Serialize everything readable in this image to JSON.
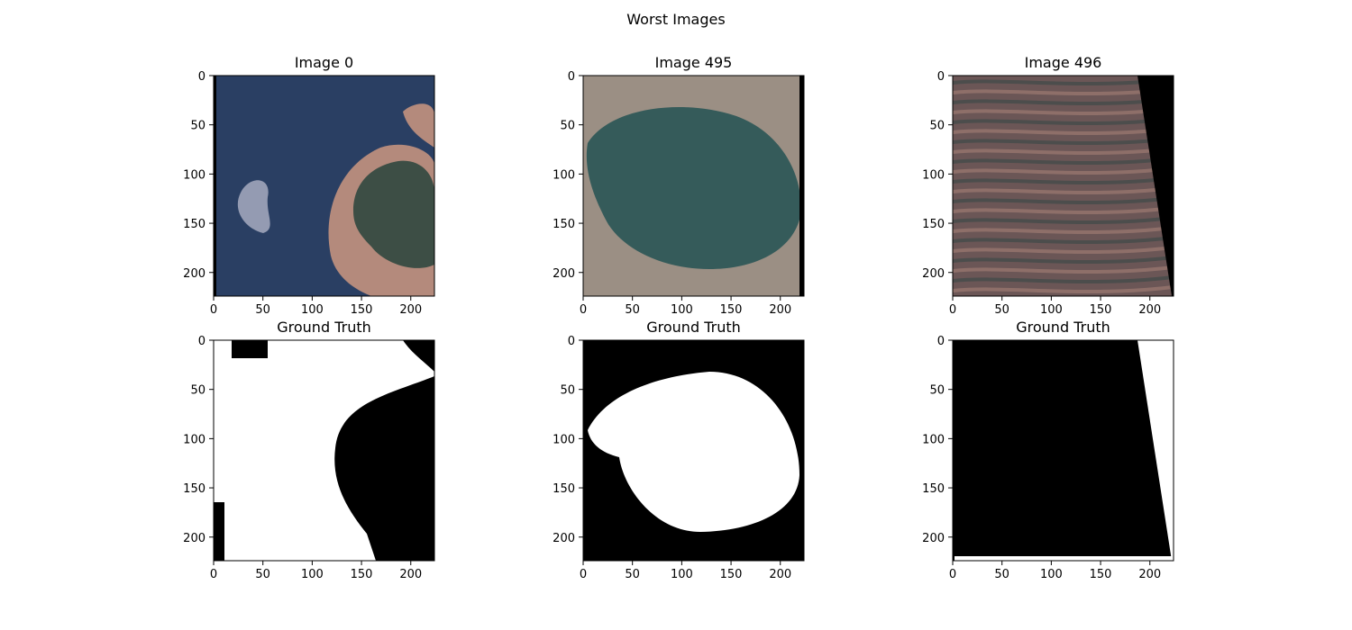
{
  "figure": {
    "suptitle": "Worst Images"
  },
  "colors": {
    "water": "#2a3f63",
    "land_red": "#b48a7c",
    "forest": "#3d4e45",
    "lake": "#355b5a",
    "steppe": "#9b8f84",
    "terrain": "#6b5656",
    "mask_white": "#ffffff",
    "mask_black": "#000000"
  },
  "chart_data": [
    {
      "type": "heatmap",
      "title": "Image 0",
      "kind": "image",
      "scene": "lake-shore-with-cloud",
      "width": 224,
      "height": 224,
      "xlim": [
        0,
        224
      ],
      "ylim": [
        224,
        0
      ],
      "xticks": [
        0,
        50,
        100,
        150,
        200
      ],
      "yticks": [
        0,
        50,
        100,
        150,
        200
      ]
    },
    {
      "type": "heatmap",
      "title": "Image 495",
      "kind": "image",
      "scene": "round-lake",
      "width": 224,
      "height": 224,
      "xlim": [
        0,
        224
      ],
      "ylim": [
        224,
        0
      ],
      "xticks": [
        0,
        50,
        100,
        150,
        200
      ],
      "yticks": [
        0,
        50,
        100,
        150,
        200
      ]
    },
    {
      "type": "heatmap",
      "title": "Image 496",
      "kind": "image",
      "scene": "streaked-terrain-black-wedge",
      "width": 224,
      "height": 224,
      "xlim": [
        0,
        224
      ],
      "ylim": [
        224,
        0
      ],
      "xticks": [
        0,
        50,
        100,
        150,
        200
      ],
      "yticks": [
        0,
        50,
        100,
        150,
        200
      ]
    },
    {
      "type": "heatmap",
      "title": "Ground Truth",
      "kind": "mask",
      "scene": "mask-0",
      "width": 224,
      "height": 224,
      "xlim": [
        0,
        224
      ],
      "ylim": [
        224,
        0
      ],
      "xticks": [
        0,
        50,
        100,
        150,
        200
      ],
      "yticks": [
        0,
        50,
        100,
        150,
        200
      ]
    },
    {
      "type": "heatmap",
      "title": "Ground Truth",
      "kind": "mask",
      "scene": "mask-495",
      "width": 224,
      "height": 224,
      "xlim": [
        0,
        224
      ],
      "ylim": [
        224,
        0
      ],
      "xticks": [
        0,
        50,
        100,
        150,
        200
      ],
      "yticks": [
        0,
        50,
        100,
        150,
        200
      ]
    },
    {
      "type": "heatmap",
      "title": "Ground Truth",
      "kind": "mask",
      "scene": "mask-496",
      "width": 224,
      "height": 224,
      "xlim": [
        0,
        224
      ],
      "ylim": [
        224,
        0
      ],
      "xticks": [
        0,
        50,
        100,
        150,
        200
      ],
      "yticks": [
        0,
        50,
        100,
        150,
        200
      ]
    }
  ]
}
